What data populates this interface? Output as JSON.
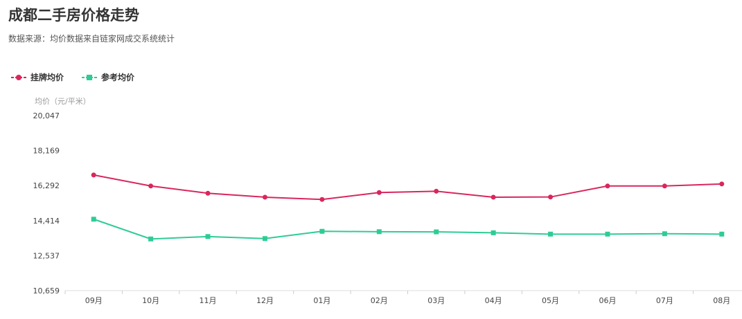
{
  "header": {
    "title": "成都二手房价格走势",
    "subtitle": "数据来源：均价数据来自链家网成交系统统计"
  },
  "chart_data": {
    "type": "line",
    "title": "成都二手房价格走势",
    "subtitle": "数据来源：均价数据来自链家网成交系统统计",
    "ylabel": "均价（元/平米）",
    "xlabel": "",
    "categories": [
      "09月",
      "10月",
      "11月",
      "12月",
      "01月",
      "02月",
      "03月",
      "04月",
      "05月",
      "06月",
      "07月",
      "08月"
    ],
    "yticks": [
      "20,047",
      "18,169",
      "16,292",
      "14,414",
      "12,537",
      "10,659"
    ],
    "ylim": [
      10659,
      20047
    ],
    "legend_position": "top-left",
    "grid": false,
    "series": [
      {
        "name": "挂牌均价",
        "color": "#d9265c",
        "marker": "circle",
        "values": [
          16860,
          16270,
          15880,
          15670,
          15550,
          15920,
          15990,
          15670,
          15680,
          16270,
          16270,
          16380
        ]
      },
      {
        "name": "参考均价",
        "color": "#2ecc95",
        "marker": "square",
        "values": [
          14490,
          13430,
          13560,
          13450,
          13840,
          13820,
          13810,
          13760,
          13690,
          13690,
          13710,
          13690
        ]
      }
    ]
  }
}
